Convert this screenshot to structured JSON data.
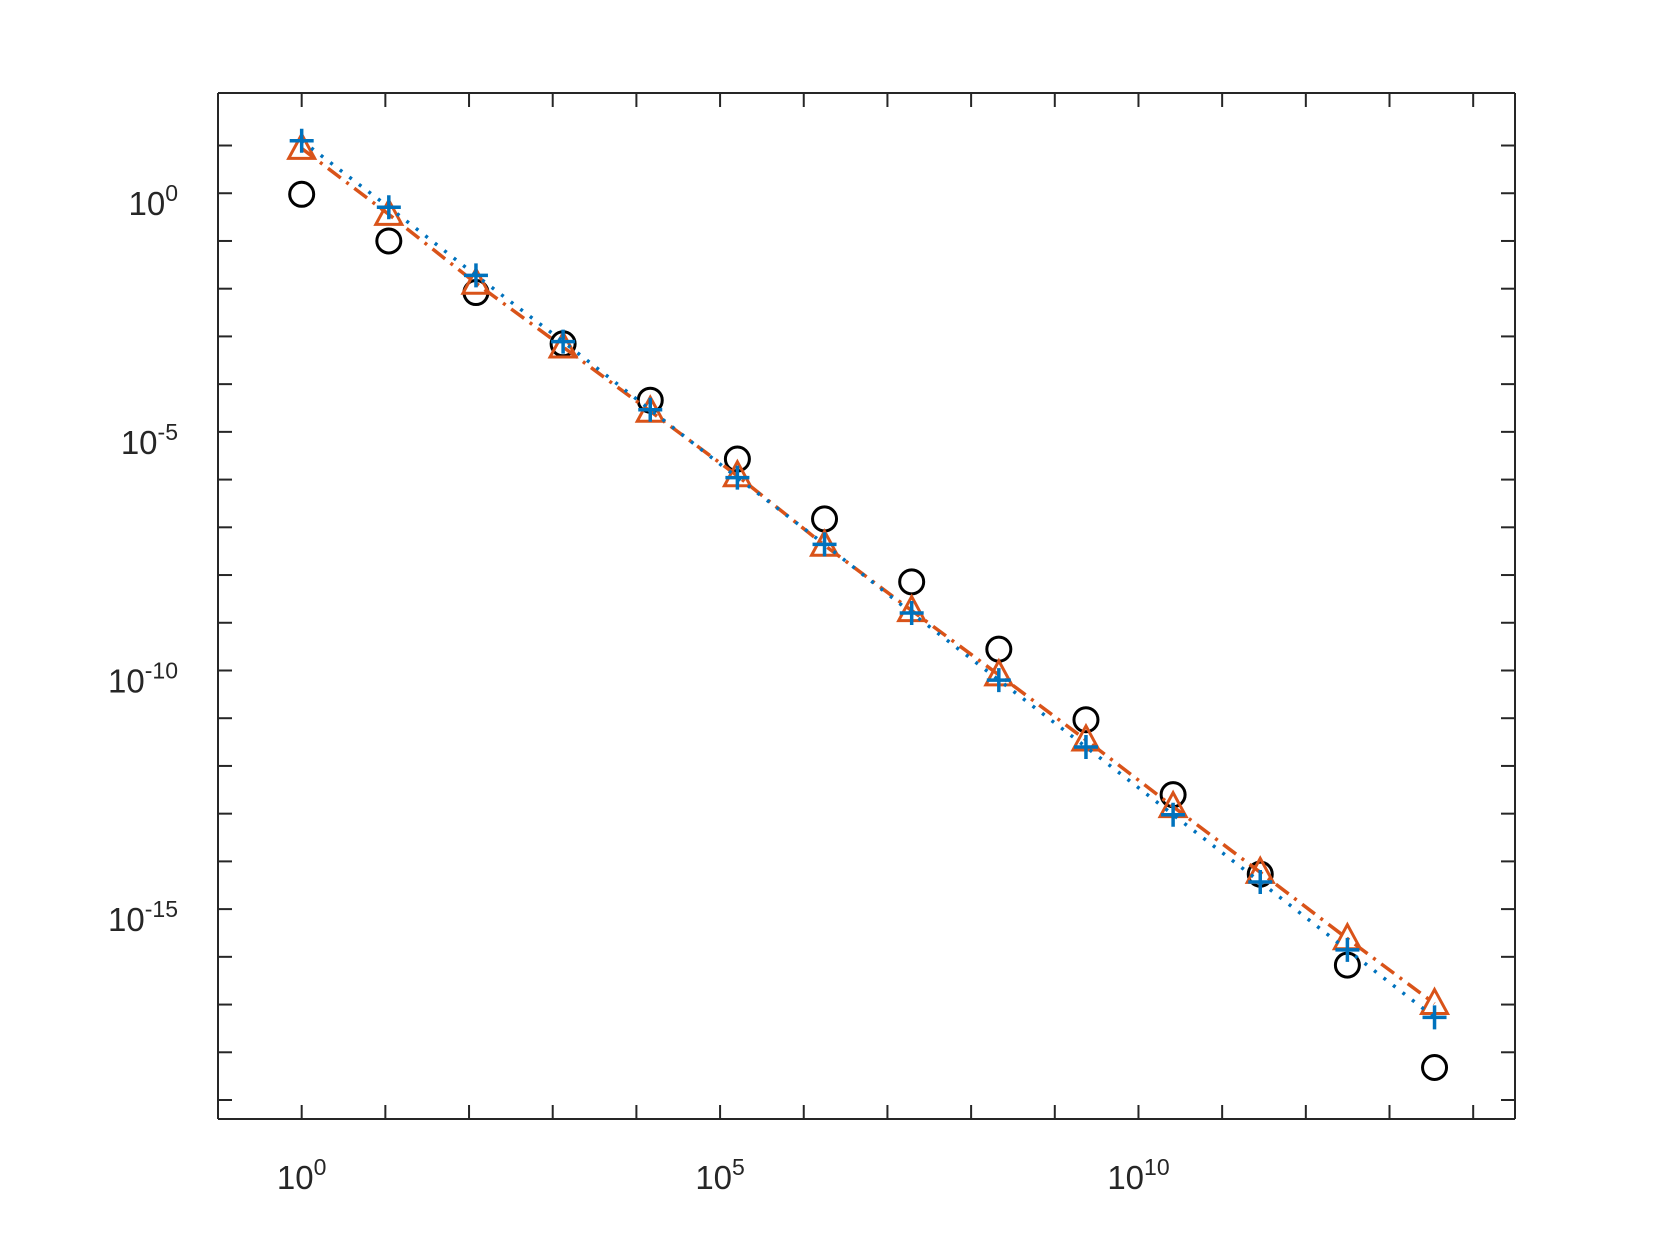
{
  "chart_data": {
    "type": "scatter",
    "log_x": true,
    "log_y": true,
    "box": true,
    "x": [
      1,
      11,
      121,
      1331,
      14641,
      161051,
      1771561,
      19487171,
      214358881,
      2357947691,
      25937424601,
      285311670611,
      3138428376721,
      34522712143931
    ],
    "series": [
      {
        "color": "#000000",
        "marker": "circle",
        "line_style": "none",
        "values": [
          0.95,
          0.1,
          0.0083,
          0.0007,
          4.6e-05,
          2.7e-06,
          1.5e-07,
          7.2e-09,
          2.8e-10,
          9.3e-12,
          2.5e-13,
          5.4e-15,
          6.7e-17,
          4.8e-19
        ]
      },
      {
        "color": "#D95319",
        "marker": "triangle",
        "line_style": "dashdot",
        "values": [
          8.7,
          0.36,
          0.013,
          0.0006,
          2.7e-05,
          1.2e-06,
          4.2e-08,
          1.8e-09,
          8.1e-11,
          3.5e-12,
          1.4e-13,
          5.9e-15,
          2.4e-16,
          1.05e-17
        ]
      },
      {
        "color": "#0072BD",
        "marker": "plus",
        "line_style": "dotted",
        "values": [
          12.6,
          0.51,
          0.019,
          0.00078,
          2.9e-05,
          1.1e-06,
          4.4e-08,
          1.6e-09,
          6.3e-11,
          2.5e-12,
          9.5e-14,
          3.7e-15,
          1.4e-16,
          5.4e-18
        ]
      }
    ],
    "xlim": [
      0.1,
      316000000000000
    ],
    "ylim": [
      4e-20,
      126
    ],
    "xticks": [
      {
        "value": 1,
        "label": "10",
        "exponent": "0"
      },
      {
        "value": 100000,
        "label": "10",
        "exponent": "5"
      },
      {
        "value": 10000000000,
        "label": "10",
        "exponent": "10"
      }
    ],
    "xminorticks": [
      10,
      100,
      1000,
      10000,
      1000000,
      10000000,
      100000000,
      1000000000,
      100000000000,
      1000000000000,
      10000000000000,
      100000000000000
    ],
    "yticks": [
      {
        "value": 1e-15,
        "label": "10",
        "exponent": "-15"
      },
      {
        "value": 1e-10,
        "label": "10",
        "exponent": "-10"
      },
      {
        "value": 1e-05,
        "label": "10",
        "exponent": "-5"
      },
      {
        "value": 1,
        "label": "10",
        "exponent": "0"
      }
    ],
    "yminorticks": [
      1e-19,
      1e-18,
      1e-17,
      1e-16,
      1e-14,
      1e-13,
      1e-12,
      1e-11,
      1e-09,
      1e-08,
      1e-07,
      1e-06,
      0.0001,
      0.001,
      0.01,
      0.1,
      10
    ]
  }
}
